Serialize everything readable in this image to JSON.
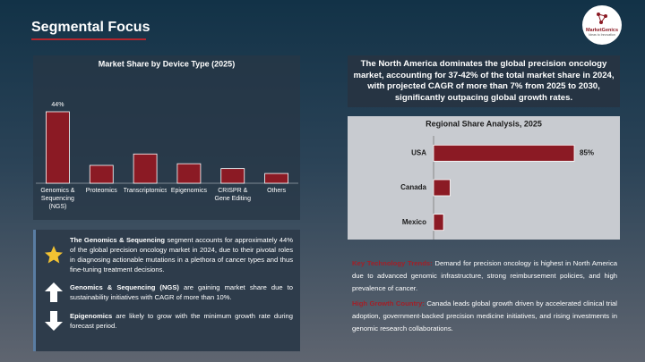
{
  "header": {
    "title": "Segmental Focus",
    "logo_name": "MarketGenics",
    "logo_tagline": "Ideas to Innovation"
  },
  "highlight": "The North America dominates the global precision oncology market, accounting for 37-42% of the total market share in 2024, with projected CAGR of more than 7% from 2025 to 2030, significantly outpacing global growth rates.",
  "chart_data": [
    {
      "type": "bar",
      "orientation": "vertical",
      "title": "Market Share by Device Type (2025)",
      "categories": [
        "Genomics & Sequencing (NGS)",
        "Proteomics",
        "Transcriptomics",
        "Epigenomics",
        "CRISPR & Gene Editing",
        "Others"
      ],
      "values": [
        44,
        11,
        18,
        12,
        9,
        6
      ],
      "value_labels": [
        "44%",
        null,
        null,
        null,
        null,
        null
      ],
      "color": "#8b1a24"
    },
    {
      "type": "bar",
      "orientation": "horizontal",
      "title": "Regional Share Analysis, 2025",
      "categories": [
        "USA",
        "Canada",
        "Mexico"
      ],
      "values": [
        85,
        10,
        6
      ],
      "value_labels": [
        "85%",
        null,
        null
      ],
      "color": "#8b1a24"
    }
  ],
  "insights": [
    {
      "bold": "The Genomics & Sequencing",
      "text": "segment accounts for approximately 44% of the global precision oncology market in 2024, due to their pivotal roles in diagnosing actionable mutations in a plethora of cancer types and thus fine-tuning treatment decisions."
    },
    {
      "bold": "Genomics & Sequencing (NGS)",
      "text": "are gaining market share due to sustainability initiatives with CAGR of more than 10%."
    },
    {
      "bold": "Epigenomics",
      "text": "are likely to grow with the minimum growth rate during forecast period."
    }
  ],
  "notes": [
    {
      "label": "Key Technology Trends:",
      "text": "Demand for precision oncology is highest in North America due to advanced genomic infrastructure, strong reimbursement policies, and high prevalence of cancer."
    },
    {
      "label": "High Growth Country:",
      "text": "Canada leads global growth driven by accelerated clinical trial adoption, government-backed precision medicine initiatives, and rising investments in genomic research collaborations."
    }
  ]
}
